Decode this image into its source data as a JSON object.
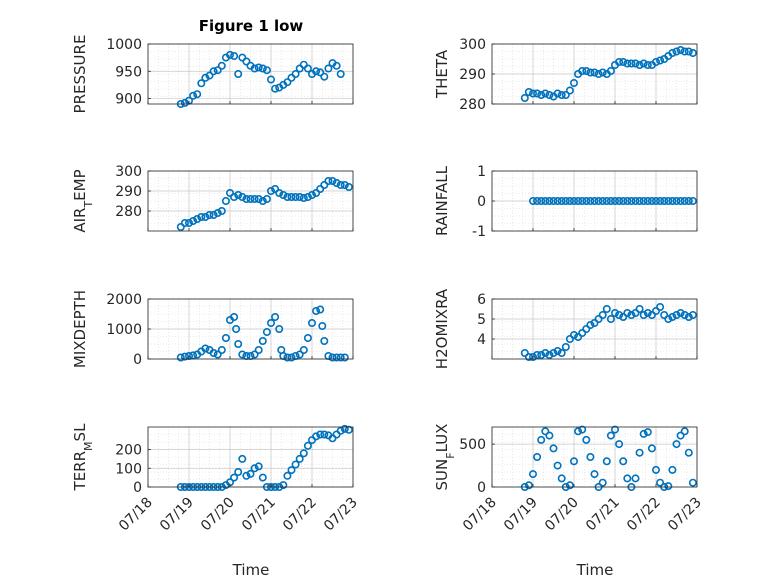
{
  "figure": {
    "title": "Figure 1 low",
    "xlabel": "Time",
    "x_ticks": [
      "07/18",
      "07/19",
      "07/20",
      "07/21",
      "07/22",
      "07/23"
    ],
    "marker_color": "#0072BD"
  },
  "chart_data": [
    {
      "type": "scatter",
      "name": "PRESSURE",
      "ylabel": "PRESSURE",
      "xlim": [
        18,
        23
      ],
      "ylim": [
        890,
        1000
      ],
      "yticks": [
        900,
        950,
        1000
      ],
      "x": [
        18.8,
        18.9,
        19.0,
        19.1,
        19.2,
        19.3,
        19.4,
        19.5,
        19.6,
        19.7,
        19.8,
        19.9,
        20.0,
        20.1,
        20.2,
        20.3,
        20.4,
        20.5,
        20.6,
        20.7,
        20.8,
        20.9,
        21.0,
        21.1,
        21.2,
        21.3,
        21.4,
        21.5,
        21.6,
        21.7,
        21.8,
        21.9,
        22.0,
        22.1,
        22.2,
        22.3,
        22.4,
        22.5,
        22.6,
        22.7
      ],
      "y": [
        890,
        892,
        896,
        905,
        908,
        928,
        938,
        942,
        950,
        952,
        960,
        975,
        980,
        978,
        945,
        975,
        968,
        960,
        955,
        957,
        955,
        952,
        935,
        918,
        920,
        925,
        930,
        938,
        945,
        955,
        962,
        955,
        945,
        950,
        948,
        940,
        955,
        965,
        960,
        945
      ]
    },
    {
      "type": "scatter",
      "name": "THETA",
      "ylabel": "THETA",
      "xlim": [
        18,
        23
      ],
      "ylim": [
        280,
        300
      ],
      "yticks": [
        280,
        290,
        300
      ],
      "x": [
        18.8,
        18.9,
        19.0,
        19.1,
        19.2,
        19.3,
        19.4,
        19.5,
        19.6,
        19.7,
        19.8,
        19.9,
        20.0,
        20.1,
        20.2,
        20.3,
        20.4,
        20.5,
        20.6,
        20.7,
        20.8,
        20.9,
        21.0,
        21.1,
        21.2,
        21.3,
        21.4,
        21.5,
        21.6,
        21.7,
        21.8,
        21.9,
        22.0,
        22.1,
        22.2,
        22.3,
        22.4,
        22.5,
        22.6,
        22.7,
        22.8,
        22.9
      ],
      "y": [
        282,
        284,
        283.5,
        283.5,
        283,
        283.5,
        283,
        282.5,
        283.5,
        283,
        283,
        284.5,
        287,
        290,
        291,
        291,
        290.5,
        290.5,
        290,
        290.5,
        290,
        291,
        293,
        294,
        294,
        293.5,
        293.5,
        293.5,
        293,
        293.5,
        293,
        293,
        294,
        294.5,
        295,
        296,
        297,
        297.5,
        298,
        297.5,
        297.5,
        297
      ]
    },
    {
      "type": "scatter",
      "name": "AIR_TEMP",
      "ylabel": "AIR_TEMP",
      "xlim": [
        18,
        23
      ],
      "ylim": [
        270,
        300
      ],
      "yticks": [
        280,
        290,
        300
      ],
      "x": [
        18.8,
        18.9,
        19.0,
        19.1,
        19.2,
        19.3,
        19.4,
        19.5,
        19.6,
        19.7,
        19.8,
        19.9,
        20.0,
        20.1,
        20.2,
        20.3,
        20.4,
        20.5,
        20.6,
        20.7,
        20.8,
        20.9,
        21.0,
        21.1,
        21.2,
        21.3,
        21.4,
        21.5,
        21.6,
        21.7,
        21.8,
        21.9,
        22.0,
        22.1,
        22.2,
        22.3,
        22.4,
        22.5,
        22.6,
        22.7,
        22.8,
        22.9
      ],
      "y": [
        272,
        274,
        274,
        275,
        276,
        277,
        277,
        278,
        278,
        279,
        280,
        285,
        289,
        287,
        288,
        287,
        286,
        286,
        286,
        286,
        285,
        286,
        290,
        291,
        289,
        288,
        287,
        287,
        287,
        287,
        286.5,
        287,
        288,
        289,
        291,
        293,
        295,
        295,
        294,
        293,
        293,
        292
      ]
    },
    {
      "type": "scatter",
      "name": "RAINFALL",
      "ylabel": "RAINFALL",
      "xlim": [
        18,
        23
      ],
      "ylim": [
        -1,
        1
      ],
      "yticks": [
        -1,
        0,
        1
      ],
      "x": [
        19.0,
        19.1,
        19.2,
        19.3,
        19.4,
        19.5,
        19.6,
        19.7,
        19.8,
        19.9,
        20.0,
        20.1,
        20.2,
        20.3,
        20.4,
        20.5,
        20.6,
        20.7,
        20.8,
        20.9,
        21.0,
        21.1,
        21.2,
        21.3,
        21.4,
        21.5,
        21.6,
        21.7,
        21.8,
        21.9,
        22.0,
        22.1,
        22.2,
        22.3,
        22.4,
        22.5,
        22.6,
        22.7,
        22.8,
        22.9
      ],
      "y": [
        0,
        0,
        0,
        0,
        0,
        0,
        0,
        0,
        0,
        0,
        0,
        0,
        0,
        0,
        0,
        0,
        0,
        0,
        0,
        0,
        0,
        0,
        0,
        0,
        0,
        0,
        0,
        0,
        0,
        0,
        0,
        0,
        0,
        0,
        0,
        0,
        0,
        0,
        0,
        0
      ]
    },
    {
      "type": "scatter",
      "name": "MIXDEPTH",
      "ylabel": "MIXDEPTH",
      "xlim": [
        18,
        23
      ],
      "ylim": [
        0,
        2000
      ],
      "yticks": [
        0,
        1000,
        2000
      ],
      "x": [
        18.8,
        18.9,
        19.0,
        19.1,
        19.2,
        19.3,
        19.4,
        19.5,
        19.6,
        19.7,
        19.8,
        19.9,
        20.0,
        20.1,
        20.15,
        20.2,
        20.3,
        20.4,
        20.5,
        20.6,
        20.7,
        20.8,
        20.9,
        21.0,
        21.1,
        21.2,
        21.25,
        21.3,
        21.4,
        21.5,
        21.6,
        21.7,
        21.8,
        21.9,
        22.0,
        22.1,
        22.2,
        22.25,
        22.3,
        22.4,
        22.5,
        22.6,
        22.7,
        22.8
      ],
      "y": [
        50,
        80,
        100,
        120,
        150,
        250,
        350,
        300,
        200,
        150,
        300,
        700,
        1300,
        1400,
        1000,
        500,
        150,
        100,
        100,
        150,
        300,
        600,
        900,
        1200,
        1400,
        1000,
        300,
        100,
        50,
        50,
        100,
        150,
        300,
        700,
        1200,
        1600,
        1650,
        1100,
        600,
        100,
        50,
        50,
        50,
        50
      ]
    },
    {
      "type": "scatter",
      "name": "H2OMIXRA",
      "ylabel": "H2OMIXRA",
      "xlim": [
        18,
        23
      ],
      "ylim": [
        3,
        6
      ],
      "yticks": [
        4,
        5,
        6
      ],
      "x": [
        18.8,
        18.9,
        19.0,
        19.1,
        19.2,
        19.3,
        19.4,
        19.5,
        19.6,
        19.7,
        19.8,
        19.9,
        20.0,
        20.1,
        20.2,
        20.3,
        20.4,
        20.5,
        20.6,
        20.7,
        20.8,
        20.9,
        21.0,
        21.1,
        21.2,
        21.3,
        21.4,
        21.5,
        21.6,
        21.7,
        21.8,
        21.9,
        22.0,
        22.1,
        22.2,
        22.3,
        22.4,
        22.5,
        22.6,
        22.7,
        22.8,
        22.9
      ],
      "y": [
        3.3,
        3.1,
        3.1,
        3.2,
        3.2,
        3.3,
        3.2,
        3.3,
        3.4,
        3.3,
        3.6,
        4.0,
        4.2,
        4.1,
        4.3,
        4.5,
        4.7,
        4.8,
        5.0,
        5.2,
        5.5,
        5.0,
        5.3,
        5.2,
        5.1,
        5.3,
        5.2,
        5.3,
        5.5,
        5.2,
        5.3,
        5.2,
        5.4,
        5.6,
        5.2,
        5.0,
        5.1,
        5.2,
        5.3,
        5.2,
        5.1,
        5.2
      ]
    },
    {
      "type": "scatter",
      "name": "TERR_MSL",
      "ylabel": "TERR_MSL",
      "xlim": [
        18,
        23
      ],
      "ylim": [
        0,
        320
      ],
      "yticks": [
        0,
        100,
        200
      ],
      "x": [
        18.8,
        18.9,
        19.0,
        19.1,
        19.2,
        19.3,
        19.4,
        19.5,
        19.6,
        19.7,
        19.8,
        19.9,
        20.0,
        20.1,
        20.2,
        20.3,
        20.4,
        20.5,
        20.6,
        20.7,
        20.8,
        20.9,
        21.0,
        21.1,
        21.2,
        21.3,
        21.4,
        21.5,
        21.6,
        21.7,
        21.8,
        21.9,
        22.0,
        22.1,
        22.2,
        22.3,
        22.4,
        22.5,
        22.6,
        22.7,
        22.8,
        22.9
      ],
      "y": [
        0,
        0,
        0,
        0,
        0,
        0,
        0,
        0,
        0,
        0,
        0,
        10,
        25,
        50,
        80,
        150,
        60,
        70,
        100,
        110,
        50,
        0,
        0,
        0,
        0,
        10,
        60,
        90,
        120,
        150,
        180,
        220,
        250,
        270,
        280,
        280,
        275,
        260,
        280,
        300,
        310,
        305
      ]
    },
    {
      "type": "scatter",
      "name": "SUN_FLUX",
      "ylabel": "SUN_FLUX",
      "xlim": [
        18,
        23
      ],
      "ylim": [
        0,
        700
      ],
      "yticks": [
        0,
        500
      ],
      "x": [
        18.8,
        18.9,
        19.0,
        19.1,
        19.2,
        19.3,
        19.4,
        19.5,
        19.6,
        19.7,
        19.8,
        19.9,
        20.0,
        20.1,
        20.2,
        20.3,
        20.4,
        20.5,
        20.6,
        20.7,
        20.8,
        20.9,
        21.0,
        21.1,
        21.2,
        21.3,
        21.4,
        21.5,
        21.6,
        21.7,
        21.8,
        21.9,
        22.0,
        22.1,
        22.2,
        22.3,
        22.4,
        22.5,
        22.6,
        22.7,
        22.8,
        22.9
      ],
      "y": [
        0,
        20,
        150,
        350,
        550,
        650,
        600,
        450,
        250,
        100,
        0,
        20,
        300,
        650,
        670,
        550,
        350,
        150,
        0,
        50,
        300,
        600,
        670,
        500,
        300,
        100,
        0,
        100,
        400,
        620,
        640,
        450,
        200,
        50,
        0,
        10,
        200,
        500,
        600,
        650,
        400,
        50
      ]
    }
  ]
}
